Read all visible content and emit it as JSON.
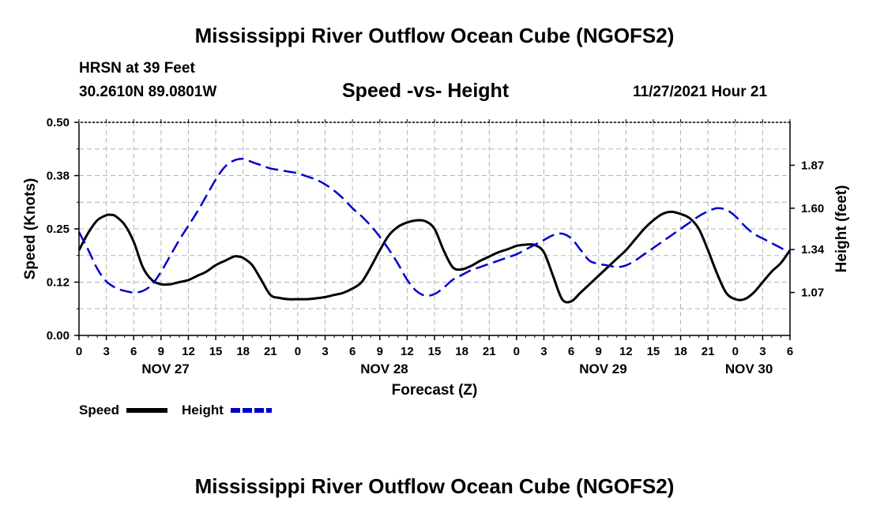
{
  "page": {
    "title": "Mississippi River Outflow Ocean Cube (NGOFS2)",
    "title_repeat": "Mississippi River Outflow Ocean Cube (NGOFS2)",
    "station": "HRSN at 39 Feet",
    "location": "30.2610N  89.0801W",
    "datetime": "11/27/2021 Hour 21"
  },
  "chart_data": {
    "type": "line",
    "title": "Speed -vs- Height",
    "xlabel": "Forecast (Z)",
    "ylabel": "Speed (Knots)",
    "y2label": "Height (feet)",
    "x_range_hours": [
      0,
      78
    ],
    "ylim": [
      0.0,
      0.5
    ],
    "y2lim": [
      0.8,
      2.14
    ],
    "y_ticks": [
      "0.00",
      "0.12",
      "0.25",
      "0.38",
      "0.50"
    ],
    "y2_ticks": [
      "1.07",
      "1.34",
      "1.60",
      "1.87"
    ],
    "y2_tick_values": [
      1.07,
      1.34,
      1.6,
      1.87
    ],
    "x_tick_labels": [
      "0",
      "3",
      "6",
      "9",
      "12",
      "15",
      "18",
      "21",
      "0",
      "3",
      "6",
      "9",
      "12",
      "15",
      "18",
      "21",
      "0",
      "3",
      "6",
      "9",
      "12",
      "15",
      "18",
      "21",
      "0",
      "3",
      "6"
    ],
    "day_labels": [
      {
        "label": "NOV 27",
        "hour": 9.5
      },
      {
        "label": "NOV 28",
        "hour": 33.5
      },
      {
        "label": "NOV 29",
        "hour": 57.5
      },
      {
        "label": "NOV 30",
        "hour": 73.5
      }
    ],
    "grid": true,
    "legend": "bottom-left",
    "series": [
      {
        "name": "Speed",
        "axis": "left",
        "color": "#000000",
        "style": "solid",
        "x": [
          0,
          1,
          2,
          3,
          3.5,
          4,
          5,
          6,
          7,
          8,
          9,
          10,
          11,
          12,
          13,
          14,
          15,
          16,
          17,
          17.5,
          18,
          19,
          20,
          21,
          22,
          23,
          24,
          25,
          26,
          27,
          28,
          29,
          30,
          31,
          32,
          33,
          34,
          35,
          36,
          37,
          38,
          39,
          40,
          41,
          42,
          43,
          44,
          45,
          46,
          47,
          48,
          49,
          50,
          51,
          52,
          53,
          54,
          55,
          56,
          57,
          58,
          59,
          60,
          61,
          62,
          63,
          64,
          65,
          66,
          67,
          68,
          69,
          70,
          71,
          72,
          73,
          74,
          75,
          76,
          77,
          78
        ],
        "values": [
          0.2,
          0.24,
          0.27,
          0.282,
          0.283,
          0.28,
          0.26,
          0.22,
          0.16,
          0.13,
          0.12,
          0.12,
          0.125,
          0.13,
          0.14,
          0.15,
          0.165,
          0.175,
          0.185,
          0.185,
          0.182,
          0.165,
          0.13,
          0.095,
          0.088,
          0.085,
          0.085,
          0.085,
          0.087,
          0.09,
          0.095,
          0.1,
          0.11,
          0.125,
          0.16,
          0.2,
          0.235,
          0.255,
          0.265,
          0.27,
          0.268,
          0.25,
          0.2,
          0.16,
          0.155,
          0.163,
          0.175,
          0.185,
          0.195,
          0.202,
          0.21,
          0.213,
          0.212,
          0.195,
          0.14,
          0.085,
          0.08,
          0.1,
          0.12,
          0.14,
          0.16,
          0.18,
          0.2,
          0.225,
          0.25,
          0.27,
          0.285,
          0.29,
          0.285,
          0.275,
          0.25,
          0.2,
          0.145,
          0.1,
          0.085,
          0.085,
          0.1,
          0.125,
          0.15,
          0.17,
          0.2
        ]
      },
      {
        "name": "Height",
        "axis": "right",
        "color": "#0000cc",
        "style": "dashed",
        "x": [
          0,
          1,
          2,
          3,
          4,
          5,
          6,
          7,
          8,
          9,
          10,
          11,
          12,
          13,
          14,
          15,
          16,
          17,
          18,
          19,
          20,
          21,
          22,
          23,
          24,
          25,
          26,
          27,
          28,
          29,
          30,
          31,
          32,
          33,
          34,
          35,
          36,
          37,
          38,
          39,
          40,
          41,
          42,
          43,
          44,
          45,
          46,
          47,
          48,
          49,
          50,
          51,
          52,
          53,
          54,
          55,
          56,
          57,
          58,
          59,
          60,
          61,
          62,
          63,
          64,
          65,
          66,
          67,
          68,
          69,
          70,
          71,
          72,
          73,
          74,
          75,
          76,
          77,
          78
        ],
        "values": [
          1.45,
          1.34,
          1.22,
          1.14,
          1.1,
          1.08,
          1.07,
          1.08,
          1.12,
          1.2,
          1.3,
          1.4,
          1.49,
          1.58,
          1.68,
          1.78,
          1.86,
          1.9,
          1.91,
          1.89,
          1.87,
          1.85,
          1.84,
          1.83,
          1.82,
          1.8,
          1.78,
          1.75,
          1.71,
          1.66,
          1.6,
          1.55,
          1.49,
          1.42,
          1.34,
          1.25,
          1.15,
          1.08,
          1.05,
          1.06,
          1.1,
          1.15,
          1.18,
          1.21,
          1.23,
          1.25,
          1.27,
          1.29,
          1.31,
          1.34,
          1.37,
          1.4,
          1.43,
          1.44,
          1.41,
          1.34,
          1.27,
          1.25,
          1.24,
          1.23,
          1.24,
          1.27,
          1.31,
          1.35,
          1.39,
          1.43,
          1.47,
          1.51,
          1.55,
          1.58,
          1.6,
          1.59,
          1.55,
          1.49,
          1.44,
          1.41,
          1.38,
          1.35,
          1.32
        ]
      }
    ]
  }
}
